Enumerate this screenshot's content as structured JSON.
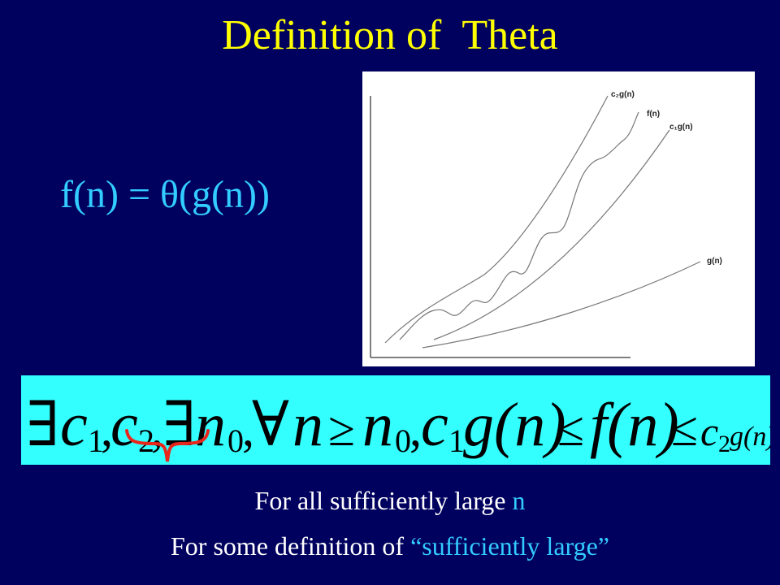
{
  "title": "Definition of  Theta",
  "formula": "f(n) = θ(g(n))",
  "graph": {
    "labels": {
      "c2g": "c₂g(n)",
      "f": "f(n)",
      "c1g": "c₁g(n)",
      "g": "g(n)"
    }
  },
  "definition": {
    "exists1": "∃",
    "c1": "c",
    "sub1": "1",
    "comma1": ",",
    "c2": "c",
    "sub2": "2",
    "comma2": ",",
    "exists2": "∃",
    "n0": "n",
    "sub0": "0",
    "comma3": ",",
    "forall": "∀",
    "n": "n",
    "geq": "≥",
    "n0b": "n",
    "sub0b": "0",
    "comma4": ",",
    "c1b": "c",
    "sub1b": "1",
    "g1": "g(n)",
    "leq1": "≤",
    "f": "f(n)",
    "leq2": "≤",
    "c2b": "c",
    "sub2b": "2",
    "g2": "g(n)"
  },
  "lines": {
    "line1_prefix": "For all sufficiently large ",
    "line1_var": "n",
    "line2_prefix": "For some definition of ",
    "line2_quote": "“sufficiently large”"
  },
  "colors": {
    "background": "#00005e",
    "title": "#ffff00",
    "formula": "#33ccff",
    "def_box": "#33ffff",
    "brace": "#e8261c"
  }
}
